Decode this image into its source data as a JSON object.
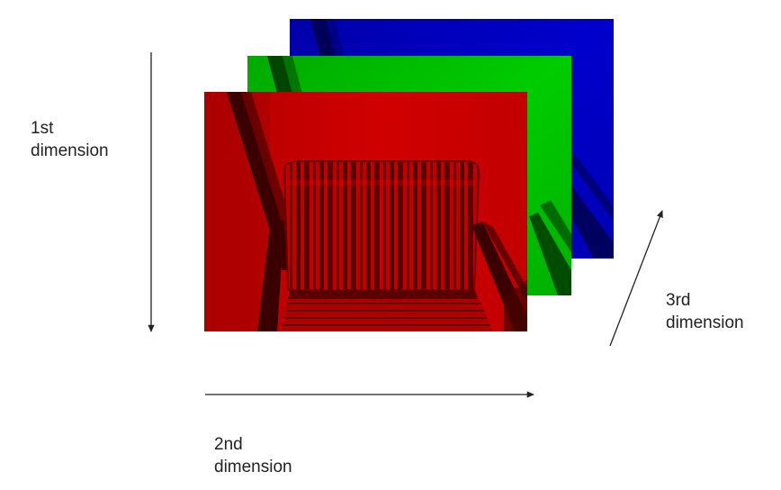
{
  "channels": [
    {
      "name": "blue",
      "color": "#0000c0"
    },
    {
      "name": "green",
      "color": "#00c000"
    },
    {
      "name": "red",
      "color": "#cc0000"
    }
  ],
  "axes": {
    "first": {
      "line1": "1st",
      "line2": "dimension",
      "direction": "down"
    },
    "second": {
      "line1": "2nd",
      "line2": "dimension",
      "direction": "right"
    },
    "third": {
      "line1": "3rd",
      "line2": "dimension",
      "direction": "up-right"
    }
  },
  "arrow_color": "#222222"
}
